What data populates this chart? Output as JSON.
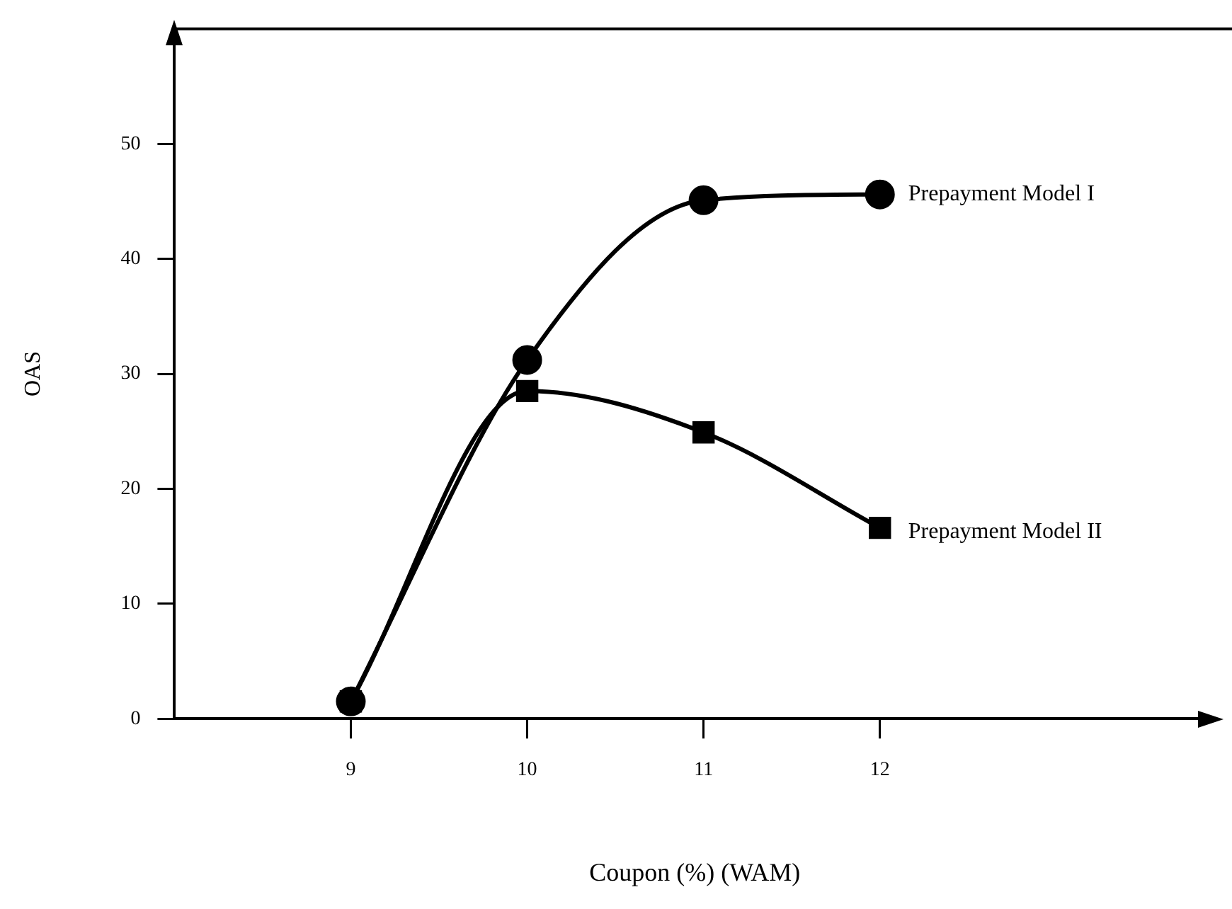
{
  "chart_data": {
    "type": "line",
    "xlabel": "Coupon (%) (WAM)",
    "ylabel": "OAS",
    "x": [
      9,
      10,
      11,
      12
    ],
    "xlim": [
      8,
      13.9
    ],
    "xticks": [
      9,
      10,
      11,
      12
    ],
    "ylim": [
      0,
      60
    ],
    "yticks": [
      0,
      10,
      20,
      30,
      40,
      50
    ],
    "grid": false,
    "legend": false,
    "line_style": "solid",
    "series": [
      {
        "name": "Prepayment Model I",
        "color": "#000000",
        "marker": "circle",
        "values": [
          1.5,
          31.2,
          45.1,
          45.6
        ]
      },
      {
        "name": "Prepayment Model II",
        "color": "#000000",
        "marker": "square",
        "values": [
          1.5,
          28.5,
          24.9,
          16.6
        ]
      }
    ]
  }
}
